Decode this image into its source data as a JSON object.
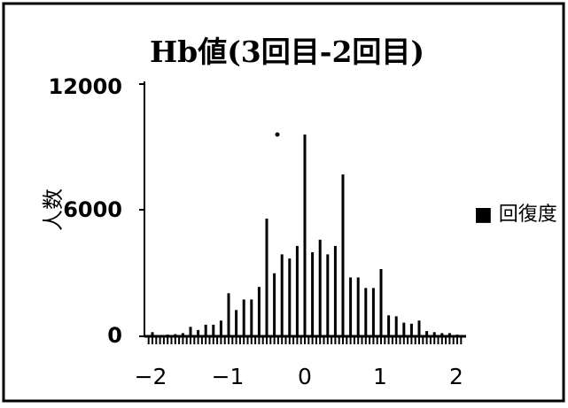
{
  "chart_data": {
    "type": "bar",
    "title": "Hb値(3回目-2回目)",
    "ylabel": "人数",
    "xlabel": "",
    "xlim": [
      -2.1,
      2.1
    ],
    "ylim": [
      0,
      12000
    ],
    "y_ticks": [
      "12000",
      "6000",
      "0"
    ],
    "y_tick_values": [
      12000,
      6000,
      0
    ],
    "x_ticks": [
      "−2",
      "−1",
      "0",
      "1",
      "2"
    ],
    "x_tick_values": [
      -2,
      -1,
      0,
      1,
      2
    ],
    "legend": "■ 回復度",
    "legend_position": "right",
    "grid": false,
    "bar_color": "#000000",
    "series": [
      {
        "x": [
          -2.0,
          -1.9,
          -1.8,
          -1.7,
          -1.6,
          -1.5,
          -1.4,
          -1.3,
          -1.2,
          -1.1,
          -1.0,
          -0.9,
          -0.8,
          -0.7,
          -0.6,
          -0.5,
          -0.4,
          -0.3,
          -0.2,
          -0.1,
          0.0,
          0.1,
          0.2,
          0.3,
          0.4,
          0.5,
          0.6,
          0.7,
          0.8,
          0.9,
          1.0,
          1.1,
          1.2,
          1.3,
          1.4,
          1.5,
          1.6,
          1.7,
          1.8,
          1.9,
          2.0
        ],
        "values": [
          200,
          60,
          80,
          100,
          150,
          450,
          300,
          550,
          550,
          750,
          2050,
          1250,
          1750,
          1750,
          2350,
          5600,
          3000,
          3900,
          3700,
          4300,
          9600,
          4000,
          4600,
          3900,
          4300,
          7700,
          2800,
          2800,
          2300,
          2300,
          3200,
          1000,
          950,
          650,
          600,
          750,
          250,
          200,
          150,
          150,
          80
        ]
      }
    ]
  }
}
